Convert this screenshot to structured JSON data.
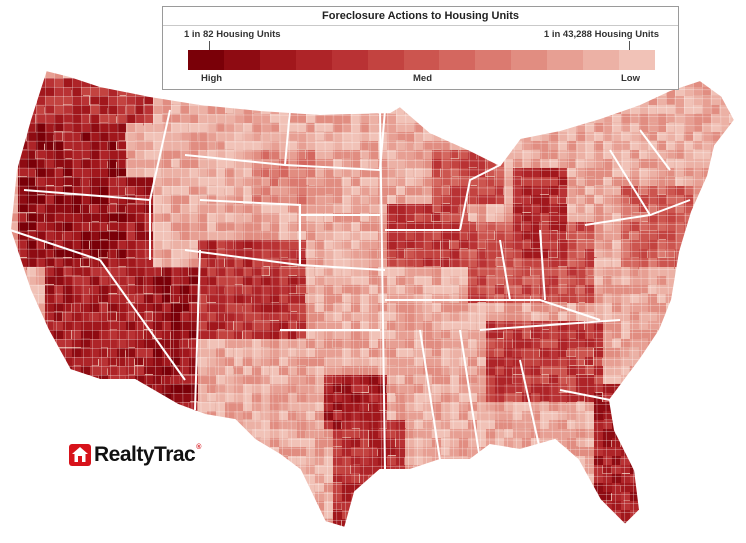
{
  "legend": {
    "title": "Foreclosure Actions to Housing Units",
    "left_label": "1 in 82 Housing Units",
    "right_label": "1 in 43,288 Housing Units",
    "high_label": "High",
    "med_label": "Med",
    "low_label": "Low",
    "scale_colors": [
      "#7a0008",
      "#8e0b12",
      "#a1171c",
      "#ae2428",
      "#b93234",
      "#c34340",
      "#cc554f",
      "#d4675f",
      "#db7a70",
      "#e18d81",
      "#e79f93",
      "#ecb1a5",
      "#f1c2b7"
    ]
  },
  "map": {
    "region": "Contiguous United States",
    "unit": "county",
    "base_color": "#e5b2a6",
    "county_border_color": "#ffffff",
    "state_border_color": "#ffffff"
  },
  "logo": {
    "text": "RealtyTrac",
    "trademark": "®",
    "icon": "house-icon"
  }
}
